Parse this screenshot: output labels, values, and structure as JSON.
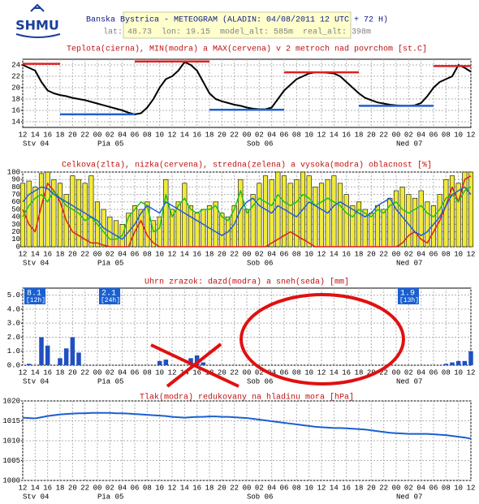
{
  "logo": "SHMU",
  "header": {
    "title": "Banska Bystrica - METEOGRAM (ALADIN: 04/08/2011 12 UTC + 72 H)",
    "subtitle": "lat: 48.73  lon: 19.15  model_alt: 585m  real_alt: 398m"
  },
  "chart_data": [
    {
      "type": "line",
      "title": "Teplota(cierna), MIN(modra) a MAX(cervena) v 2 metroch nad povrchom [st.C]",
      "categories": [
        "12",
        null,
        "14",
        null,
        "16",
        null,
        "18",
        null,
        "20",
        null,
        "22",
        null,
        "00",
        null,
        "02",
        null,
        "04",
        null,
        "06",
        null,
        "08",
        null,
        "10",
        null,
        "12",
        null,
        "14",
        null,
        "16",
        null,
        "18",
        null,
        "20",
        null,
        "22",
        null,
        "00",
        null,
        "02",
        null,
        "04",
        null,
        "06",
        null,
        "08",
        null,
        "10",
        null,
        "12",
        null,
        "14",
        null,
        "16",
        null,
        "18",
        null,
        "20",
        null,
        "22",
        null,
        "00",
        null,
        "02",
        null,
        "04",
        null,
        "06",
        null,
        "08",
        null,
        "10",
        null,
        "12"
      ],
      "day_labels": [
        "Stv 04",
        "Pia 05",
        "Sob 06",
        "Ned 07"
      ],
      "ylim": [
        13,
        25
      ],
      "yticks": [
        14,
        16,
        18,
        20,
        22,
        24
      ],
      "grid": true,
      "series": [
        {
          "color": "#000000",
          "values": [
            24.0,
            23.5,
            23.0,
            21.0,
            19.5,
            19.0,
            18.7,
            18.5,
            18.2,
            18.0,
            17.8,
            17.5,
            17.2,
            16.9,
            16.6,
            16.3,
            16.0,
            15.6,
            15.3,
            15.5,
            16.5,
            18.0,
            20.0,
            21.5,
            22.0,
            23.0,
            24.5,
            24.0,
            23.0,
            21.0,
            19.0,
            18.0,
            17.6,
            17.3,
            17.0,
            16.8,
            16.5,
            16.3,
            16.2,
            16.2,
            16.5,
            18.0,
            19.5,
            20.5,
            21.5,
            22.0,
            22.5,
            22.7,
            22.7,
            22.6,
            22.5,
            22.0,
            21.0,
            20.0,
            19.0,
            18.2,
            17.8,
            17.4,
            17.2,
            17.0,
            16.9,
            16.8,
            16.8,
            16.9,
            17.3,
            18.5,
            20.0,
            21.0,
            21.5,
            22.0,
            24.0,
            23.5,
            22.8
          ]
        }
      ],
      "max": {
        "color": "#e02020",
        "segments": [
          {
            "x": [
              0,
              6
            ],
            "value": 24.2
          },
          {
            "x": [
              18,
              30
            ],
            "value": 24.6
          },
          {
            "x": [
              42,
              54
            ],
            "value": 22.7
          },
          {
            "x": [
              66,
              72
            ],
            "value": 23.8
          }
        ]
      },
      "min": {
        "color": "#2060d0",
        "segments": [
          {
            "x": [
              6,
              18
            ],
            "value": 15.3
          },
          {
            "x": [
              30,
              42
            ],
            "value": 16.1
          },
          {
            "x": [
              54,
              66
            ],
            "value": 16.8
          }
        ]
      }
    },
    {
      "type": "bar",
      "title": "Celkova(zlta), nizka(cervena), stredna(zelena) a vysoka(modra) oblacnost [%]",
      "categories": [
        "12",
        null,
        "14",
        null,
        "16",
        null,
        "18",
        null,
        "20",
        null,
        "22",
        null,
        "00",
        null,
        "02",
        null,
        "04",
        null,
        "06",
        null,
        "08",
        null,
        "10",
        null,
        "12",
        null,
        "14",
        null,
        "16",
        null,
        "18",
        null,
        "20",
        null,
        "22",
        null,
        "00",
        null,
        "02",
        null,
        "04",
        null,
        "06",
        null,
        "08",
        null,
        "10",
        null,
        "12",
        null,
        "14",
        null,
        "16",
        null,
        "18",
        null,
        "20",
        null,
        "22",
        null,
        "00",
        null,
        "02",
        null,
        "04",
        null,
        "06",
        null,
        "08",
        null,
        "10",
        null,
        "12"
      ],
      "day_labels": [
        "Stv 04",
        "Pia 05",
        "Sob 06",
        "Ned 07"
      ],
      "ylim": [
        0,
        100
      ],
      "yticks": [
        0,
        10,
        20,
        30,
        40,
        50,
        60,
        70,
        80,
        90,
        100
      ],
      "grid": true,
      "series": [
        {
          "mark": "bar",
          "color": "#f0ea3a",
          "values": [
            85,
            88,
            80,
            98,
            100,
            90,
            85,
            70,
            95,
            90,
            85,
            95,
            60,
            50,
            40,
            35,
            30,
            45,
            55,
            50,
            60,
            35,
            40,
            90,
            50,
            60,
            85,
            55,
            45,
            50,
            55,
            60,
            45,
            40,
            55,
            90,
            50,
            70,
            85,
            95,
            90,
            100,
            95,
            85,
            90,
            100,
            95,
            80,
            85,
            90,
            95,
            85,
            70,
            55,
            60,
            50,
            45,
            55,
            50,
            65,
            75,
            80,
            70,
            65,
            75,
            60,
            55,
            70,
            90,
            95,
            85,
            100,
            100
          ]
        },
        {
          "mark": "line",
          "color": "#e02020",
          "values": [
            50,
            30,
            20,
            55,
            85,
            75,
            60,
            35,
            20,
            15,
            10,
            5,
            5,
            2,
            0,
            0,
            0,
            0,
            20,
            35,
            15,
            5,
            0,
            0,
            0,
            0,
            0,
            0,
            0,
            0,
            0,
            0,
            0,
            0,
            0,
            0,
            0,
            0,
            0,
            0,
            5,
            10,
            15,
            20,
            15,
            10,
            5,
            0,
            0,
            0,
            0,
            0,
            0,
            0,
            0,
            0,
            0,
            0,
            0,
            0,
            0,
            5,
            15,
            20,
            10,
            5,
            20,
            35,
            55,
            80,
            60,
            90,
            95
          ]
        },
        {
          "mark": "line",
          "color": "#20c020",
          "values": [
            40,
            55,
            65,
            70,
            60,
            75,
            65,
            55,
            50,
            45,
            35,
            40,
            30,
            20,
            10,
            10,
            15,
            40,
            50,
            60,
            55,
            20,
            25,
            70,
            40,
            55,
            65,
            50,
            45,
            50,
            50,
            55,
            40,
            35,
            50,
            75,
            45,
            55,
            65,
            60,
            55,
            70,
            60,
            55,
            60,
            70,
            65,
            55,
            60,
            65,
            60,
            55,
            45,
            40,
            50,
            45,
            40,
            50,
            45,
            55,
            60,
            50,
            45,
            50,
            55,
            45,
            40,
            50,
            65,
            70,
            60,
            75,
            80
          ]
        },
        {
          "mark": "line",
          "color": "#2060d0",
          "values": [
            60,
            70,
            75,
            80,
            78,
            70,
            65,
            60,
            55,
            50,
            45,
            40,
            35,
            25,
            20,
            15,
            10,
            20,
            30,
            45,
            55,
            50,
            45,
            60,
            55,
            50,
            45,
            40,
            35,
            30,
            25,
            20,
            15,
            20,
            30,
            50,
            60,
            65,
            55,
            50,
            45,
            55,
            50,
            45,
            40,
            50,
            60,
            55,
            50,
            45,
            55,
            60,
            55,
            50,
            45,
            40,
            45,
            55,
            60,
            65,
            50,
            40,
            30,
            20,
            15,
            20,
            30,
            40,
            55,
            70,
            75,
            80,
            70
          ]
        }
      ]
    },
    {
      "type": "bar",
      "title": "Uhrn zrazok: dazd(modra) a sneh(seda) [mm]",
      "categories": [
        "12",
        null,
        "14",
        null,
        "16",
        null,
        "18",
        null,
        "20",
        null,
        "22",
        null,
        "00",
        null,
        "02",
        null,
        "04",
        null,
        "06",
        null,
        "08",
        null,
        "10",
        null,
        "12",
        null,
        "14",
        null,
        "16",
        null,
        "18",
        null,
        "20",
        null,
        "22",
        null,
        "00",
        null,
        "02",
        null,
        "04",
        null,
        "06",
        null,
        "08",
        null,
        "10",
        null,
        "12",
        null,
        "14",
        null,
        "16",
        null,
        "18",
        null,
        "20",
        null,
        "22",
        null,
        "00",
        null,
        "02",
        null,
        "04",
        null,
        "06",
        null,
        "08",
        null,
        "10",
        null,
        "12"
      ],
      "day_labels": [
        "Stv 04",
        "Pia 05",
        "Sob 06",
        "Ned 07"
      ],
      "ylim": [
        0,
        5.5
      ],
      "yticks": [
        {
          "value": 0,
          "label": "0.0"
        },
        {
          "value": 1,
          "label": "1.0"
        },
        {
          "value": 2,
          "label": "2.0"
        },
        {
          "value": 3,
          "label": "3.0"
        },
        {
          "value": 4,
          "label": "4.0"
        },
        {
          "value": 5,
          "label": "5.0"
        }
      ],
      "grid": true,
      "series": [
        {
          "color": "#2050c0",
          "values": [
            0,
            0.1,
            0,
            2.0,
            1.4,
            0,
            0.5,
            1.2,
            2.0,
            0.9,
            0,
            0,
            0,
            0,
            0,
            0,
            0,
            0,
            0,
            0,
            0,
            0,
            0.3,
            0.4,
            0,
            0,
            0,
            0.5,
            0.7,
            0.2,
            0,
            0,
            0,
            0,
            0,
            0,
            0,
            0,
            0,
            0,
            0,
            0,
            0,
            0,
            0,
            0,
            0,
            0,
            0,
            0,
            0,
            0,
            0,
            0,
            0,
            0,
            0,
            0,
            0,
            0,
            0,
            0,
            0,
            0,
            0,
            0,
            0,
            0,
            0.1,
            0.2,
            0.3,
            0.3,
            1.0
          ]
        }
      ],
      "totals": [
        {
          "x": 0,
          "value": 8.1,
          "period": "[12h]"
        },
        {
          "x": 12,
          "value": 2.1,
          "period": "[24h]"
        },
        {
          "x": 60,
          "value": 1.9,
          "period": "[13h]"
        }
      ]
    },
    {
      "type": "line",
      "title": "Tlak(modra) redukovany na hladinu mora [hPa]",
      "categories": [
        "12",
        null,
        "14",
        null,
        "16",
        null,
        "18",
        null,
        "20",
        null,
        "22",
        null,
        "00",
        null,
        "02",
        null,
        "04",
        null,
        "06",
        null,
        "08",
        null,
        "10",
        null,
        "12",
        null,
        "14",
        null,
        "16",
        null,
        "18",
        null,
        "20",
        null,
        "22",
        null,
        "00",
        null,
        "02",
        null,
        "04",
        null,
        "06",
        null,
        "08",
        null,
        "10",
        null,
        "12",
        null,
        "14",
        null,
        "16",
        null,
        "18",
        null,
        "20",
        null,
        "22",
        null,
        "00",
        null,
        "02",
        null,
        "04",
        null,
        "06",
        null,
        "08",
        null,
        "10",
        null,
        "12"
      ],
      "day_labels": [
        "Stv 04",
        "Pia 05",
        "Sob 06",
        "Ned 07"
      ],
      "ylim": [
        1000,
        1020
      ],
      "yticks": [
        1000,
        1005,
        1010,
        1015,
        1020
      ],
      "grid": true,
      "series": [
        {
          "color": "#1a5fd0",
          "values": [
            1015.8,
            1015.7,
            1015.6,
            1015.9,
            1016.2,
            1016.4,
            1016.6,
            1016.7,
            1016.8,
            1016.9,
            1016.9,
            1017.0,
            1017.0,
            1017.0,
            1017.0,
            1016.9,
            1016.9,
            1016.8,
            1016.7,
            1016.6,
            1016.5,
            1016.4,
            1016.3,
            1016.2,
            1016.0,
            1015.9,
            1015.8,
            1015.9,
            1016.0,
            1016.0,
            1016.1,
            1016.1,
            1016.0,
            1016.0,
            1015.9,
            1015.8,
            1015.7,
            1015.5,
            1015.3,
            1015.1,
            1014.9,
            1014.7,
            1014.5,
            1014.3,
            1014.1,
            1013.9,
            1013.7,
            1013.5,
            1013.4,
            1013.3,
            1013.2,
            1013.2,
            1013.1,
            1013.0,
            1012.9,
            1012.8,
            1012.6,
            1012.4,
            1012.2,
            1012.0,
            1011.9,
            1011.8,
            1011.7,
            1011.7,
            1011.7,
            1011.7,
            1011.6,
            1011.5,
            1011.4,
            1011.2,
            1011.0,
            1010.8,
            1010.5
          ]
        }
      ]
    }
  ]
}
